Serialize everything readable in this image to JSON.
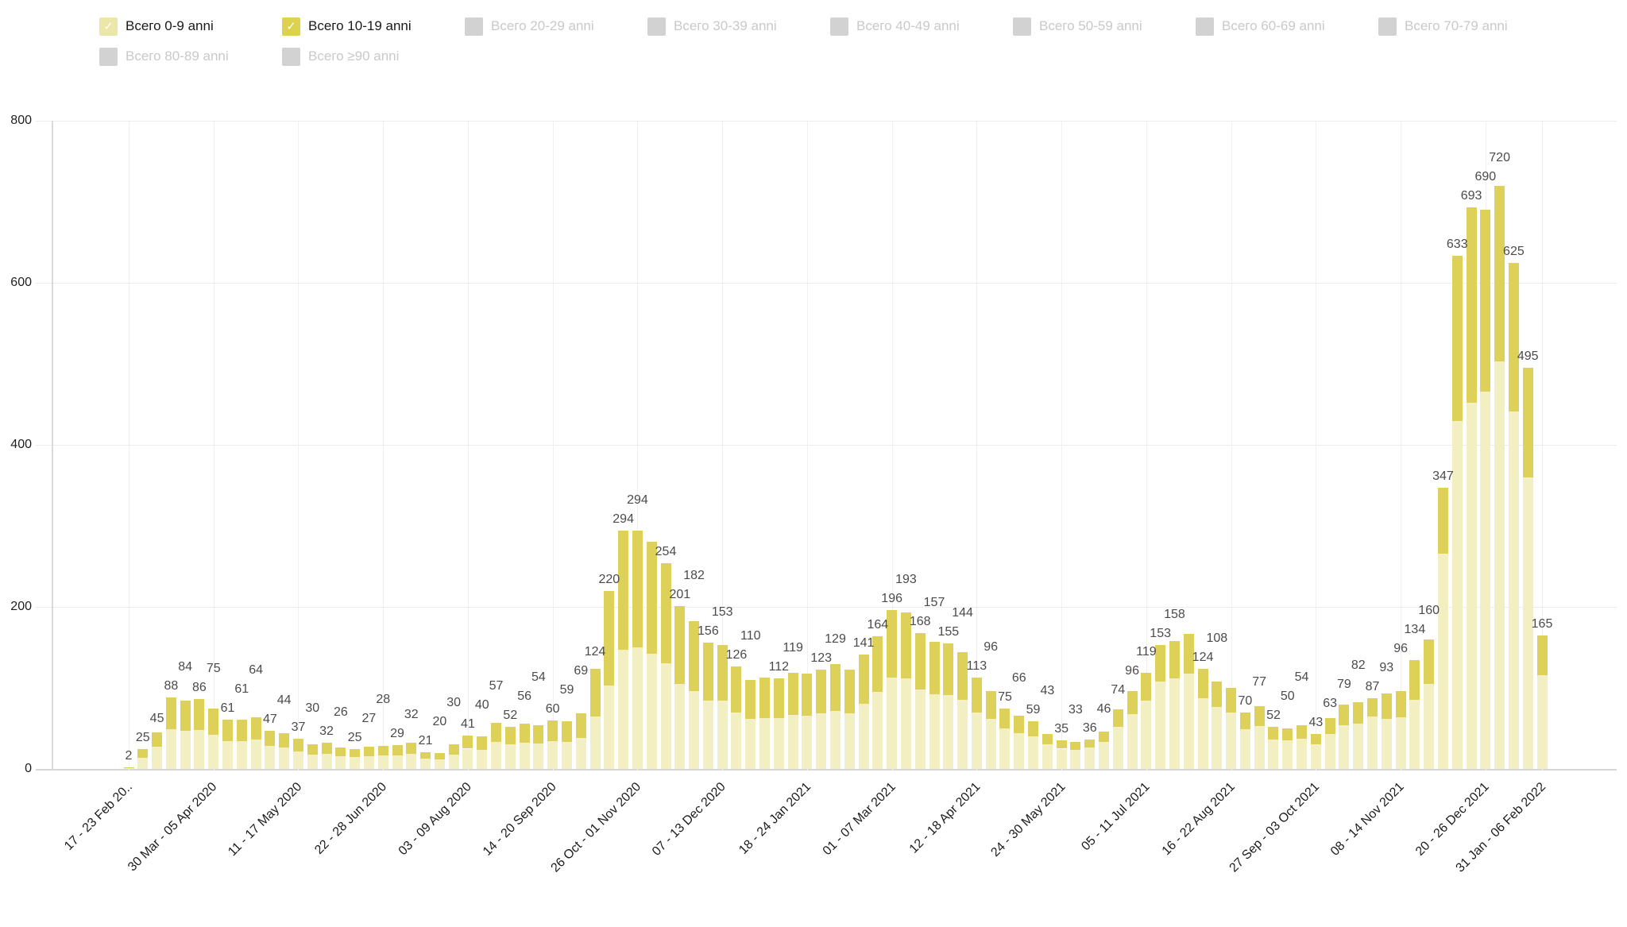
{
  "legend": {
    "rows": [
      [
        {
          "label": "Всего 0-9 anni",
          "active": true,
          "swatch_color": "#ebe7a8"
        },
        {
          "label": "Всего 10-19 anni",
          "active": true,
          "swatch_color": "#dcd24f"
        },
        {
          "label": "Всего 20-29 anni",
          "active": false,
          "swatch_color": "#d2d2d2"
        },
        {
          "label": "Всего 30-39 anni",
          "active": false,
          "swatch_color": "#d2d2d2"
        },
        {
          "label": "Всего 40-49 anni",
          "active": false,
          "swatch_color": "#d2d2d2"
        },
        {
          "label": "Всего 50-59 anni",
          "active": false,
          "swatch_color": "#d2d2d2"
        },
        {
          "label": "Всего 60-69 anni",
          "active": false,
          "swatch_color": "#d2d2d2"
        },
        {
          "label": "Всего 70-79 anni",
          "active": false,
          "swatch_color": "#d2d2d2"
        }
      ],
      [
        {
          "label": "Всего 80-89 anni",
          "active": false,
          "swatch_color": "#d2d2d2"
        },
        {
          "label": "Всего ≥90 anni",
          "active": false,
          "swatch_color": "#d2d2d2"
        }
      ]
    ],
    "check_glyph": "✓"
  },
  "chart_data": {
    "type": "bar",
    "stacked": true,
    "title": "",
    "xlabel": "",
    "ylabel": "",
    "ylim": [
      0,
      800
    ],
    "y_ticks": [
      0,
      200,
      400,
      600,
      800
    ],
    "grid": true,
    "legend_position": "top-left",
    "series": [
      {
        "name": "Всего 0-9 anni",
        "color": "#f2efc2",
        "values": [
          1,
          14,
          27,
          49,
          47,
          48,
          42,
          34,
          34,
          36,
          28,
          26,
          22,
          18,
          19,
          16,
          15,
          16,
          17,
          17,
          19,
          13,
          12,
          18,
          25,
          24,
          33,
          30,
          32,
          31,
          34,
          33,
          38,
          65,
          103,
          147,
          150,
          142,
          130,
          105,
          96,
          84,
          84,
          70,
          62,
          63,
          63,
          67,
          66,
          69,
          72,
          69,
          80,
          95,
          113,
          112,
          98,
          92,
          91,
          85,
          70,
          62,
          50,
          44,
          40,
          30,
          25,
          24,
          26,
          33,
          52,
          68,
          84,
          108,
          112,
          118,
          87,
          76,
          70,
          49,
          53,
          36,
          35,
          37,
          30,
          43,
          54,
          56,
          65,
          62,
          64,
          85,
          105,
          266,
          429,
          452,
          466,
          503,
          441,
          360,
          116
        ]
      },
      {
        "name": "Всего 10-19 anni",
        "color": "#ddd159",
        "values": [
          1,
          11,
          18,
          39,
          37,
          38,
          33,
          27,
          27,
          28,
          19,
          18,
          15,
          12,
          13,
          10,
          10,
          11,
          11,
          12,
          13,
          8,
          8,
          12,
          16,
          16,
          24,
          22,
          24,
          23,
          26,
          26,
          31,
          59,
          117,
          147,
          144,
          138,
          124,
          96,
          86,
          72,
          69,
          56,
          48,
          50,
          49,
          52,
          52,
          54,
          57,
          54,
          61,
          69,
          83,
          81,
          70,
          65,
          64,
          59,
          43,
          34,
          25,
          22,
          19,
          13,
          10,
          9,
          10,
          13,
          22,
          28,
          35,
          45,
          46,
          49,
          37,
          32,
          30,
          21,
          24,
          16,
          15,
          17,
          13,
          20,
          25,
          26,
          22,
          31,
          32,
          49,
          55,
          81,
          204,
          241,
          224,
          217,
          184,
          135,
          49
        ]
      }
    ],
    "totals": [
      2,
      25,
      45,
      88,
      84,
      86,
      75,
      61,
      61,
      64,
      47,
      44,
      37,
      30,
      32,
      26,
      25,
      27,
      28,
      29,
      32,
      21,
      20,
      30,
      41,
      40,
      57,
      52,
      56,
      54,
      60,
      59,
      69,
      124,
      220,
      294,
      294,
      280,
      254,
      201,
      182,
      156,
      153,
      126,
      110,
      113,
      112,
      119,
      118,
      123,
      129,
      123,
      141,
      164,
      196,
      193,
      168,
      157,
      155,
      144,
      113,
      96,
      75,
      66,
      59,
      43,
      35,
      33,
      36,
      46,
      74,
      96,
      119,
      153,
      158,
      167,
      124,
      108,
      100,
      70,
      77,
      52,
      50,
      54,
      43,
      63,
      79,
      82,
      87,
      93,
      96,
      134,
      160,
      347,
      633,
      693,
      690,
      720,
      625,
      495,
      165
    ],
    "total_labels": [
      "2",
      "25",
      "45",
      "88",
      "84",
      "86",
      "75",
      "61",
      "61",
      "64",
      "47",
      "44",
      "37",
      "30",
      "32",
      "26",
      "25",
      "27",
      "28",
      "29",
      "32",
      "21",
      "20",
      "30",
      "41",
      "40",
      "57",
      "52",
      "56",
      "54",
      "60",
      "59",
      "69",
      "124",
      "220",
      "294",
      "294",
      "",
      "254",
      "201",
      "182",
      "156",
      "153",
      "126",
      "110",
      "",
      "112",
      "119",
      "",
      "123",
      "129",
      "",
      "141",
      "164",
      "196",
      "193",
      "168",
      "157",
      "155",
      "144",
      "113",
      "96",
      "75",
      "66",
      "59",
      "43",
      "35",
      "33",
      "36",
      "46",
      "74",
      "96",
      "119",
      "153",
      "158",
      "",
      "124",
      "108",
      "",
      "70",
      "77",
      "52",
      "50",
      "54",
      "43",
      "63",
      "79",
      "82",
      "87",
      "93",
      "96",
      "134",
      "160",
      "347",
      "633",
      "693",
      "690",
      "720",
      "625",
      "495",
      "165"
    ],
    "x_tick_indices": [
      0,
      6,
      12,
      18,
      24,
      30,
      36,
      42,
      48,
      54,
      60,
      66,
      72,
      78,
      84,
      90,
      96,
      100
    ],
    "x_tick_labels": [
      "17 - 23 Feb 20..",
      "30 Mar - 05 Apr 2020",
      "11 - 17 May 2020",
      "22 - 28 Jun 2020",
      "03 - 09 Aug 2020",
      "14 - 20 Sep 2020",
      "26 Oct - 01 Nov 2020",
      "07 - 13 Dec 2020",
      "18 - 24 Jan 2021",
      "01 - 07 Mar 2021",
      "12 - 18 Apr 2021",
      "24 - 30 May 2021",
      "05 - 11 Jul 2021",
      "16 - 22 Aug 2021",
      "27 Sep - 03 Oct 2021",
      "08 - 14 Nov 2021",
      "20 - 26 Dec 2021",
      "31 Jan - 06 Feb 2022"
    ]
  },
  "colors": {
    "grid": "#ededed",
    "axis": "#d6d6d6",
    "bar_label": "#4b4b4b",
    "axis_label": "#1f1f1f",
    "inactive_legend_text": "#c9c9c9"
  }
}
